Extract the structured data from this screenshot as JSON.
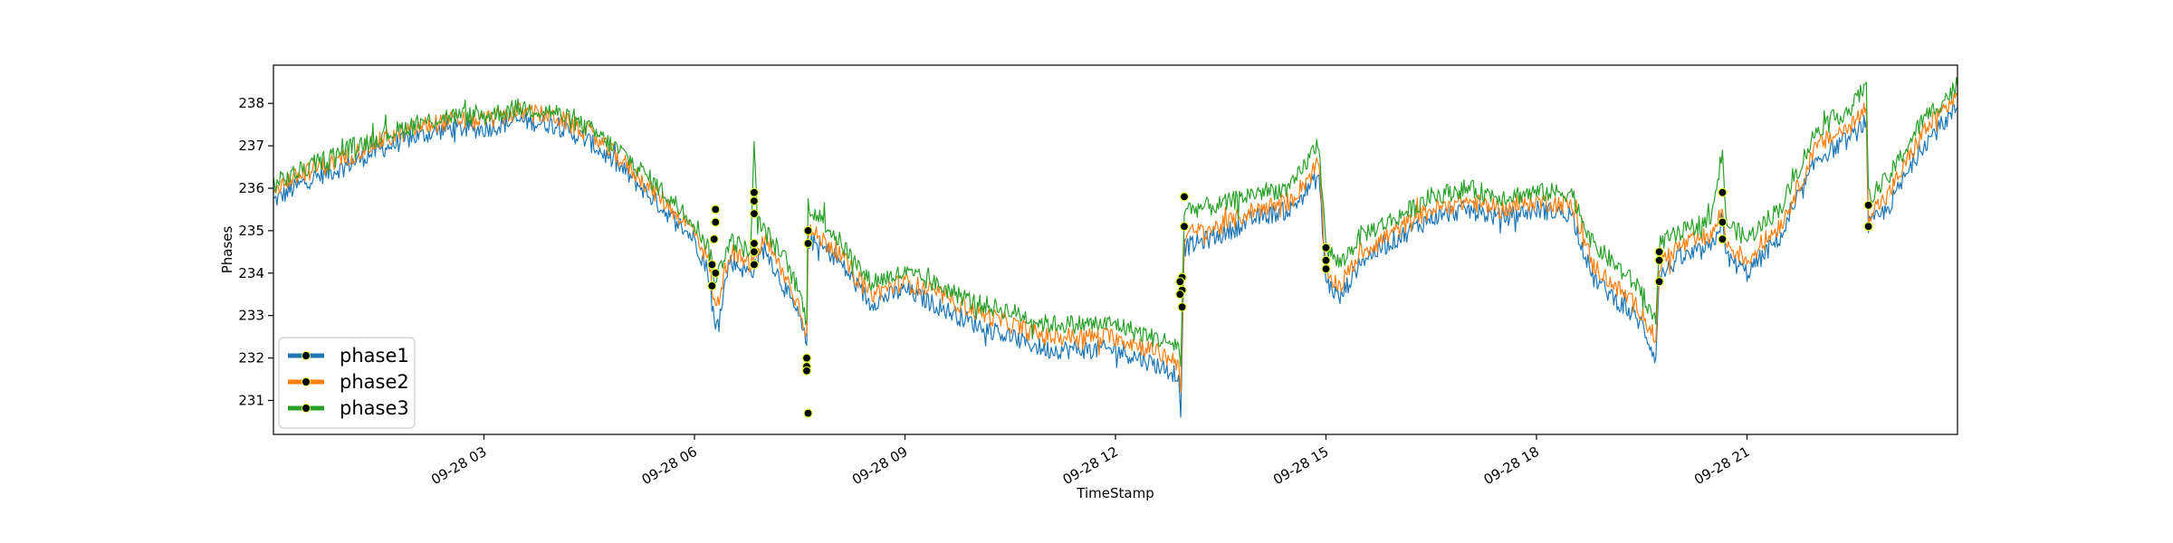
{
  "chart_data": {
    "type": "line",
    "title": "",
    "xlabel": "TimeStamp",
    "ylabel": "Phases",
    "x_range_hours": [
      0,
      24
    ],
    "ylim": [
      230.2,
      238.9
    ],
    "x_ticks": [
      {
        "hour": 3,
        "label": "09-28 03"
      },
      {
        "hour": 6,
        "label": "09-28 06"
      },
      {
        "hour": 9,
        "label": "09-28 09"
      },
      {
        "hour": 12,
        "label": "09-28 12"
      },
      {
        "hour": 15,
        "label": "09-28 15"
      },
      {
        "hour": 18,
        "label": "09-28 18"
      },
      {
        "hour": 21,
        "label": "09-28 21"
      }
    ],
    "y_ticks": [
      {
        "value": 231,
        "label": "231"
      },
      {
        "value": 232,
        "label": "232"
      },
      {
        "value": 233,
        "label": "233"
      },
      {
        "value": 234,
        "label": "234"
      },
      {
        "value": 235,
        "label": "235"
      },
      {
        "value": 236,
        "label": "236"
      },
      {
        "value": 237,
        "label": "237"
      },
      {
        "value": 238,
        "label": "238"
      }
    ],
    "grid": false,
    "legend_position": "lower-left",
    "series": [
      {
        "name": "phase1",
        "color": "#1f77b4",
        "points": [
          [
            0,
            235.7
          ],
          [
            0.5,
            236.2
          ],
          [
            1,
            236.5
          ],
          [
            1.5,
            236.9
          ],
          [
            2,
            237.2
          ],
          [
            2.5,
            237.4
          ],
          [
            3,
            237.4
          ],
          [
            3.5,
            237.6
          ],
          [
            4,
            237.5
          ],
          [
            4.5,
            237.1
          ],
          [
            5,
            236.4
          ],
          [
            5.5,
            235.6
          ],
          [
            6,
            234.8
          ],
          [
            6.2,
            234.0
          ],
          [
            6.3,
            232.6
          ],
          [
            6.5,
            234.3
          ],
          [
            6.8,
            234.0
          ],
          [
            7,
            234.6
          ],
          [
            7.3,
            233.6
          ],
          [
            7.5,
            232.9
          ],
          [
            7.6,
            232.3
          ],
          [
            7.62,
            234.8
          ],
          [
            8,
            234.4
          ],
          [
            8.5,
            233.3
          ],
          [
            9,
            233.6
          ],
          [
            9.5,
            233.2
          ],
          [
            10,
            232.8
          ],
          [
            10.5,
            232.5
          ],
          [
            11,
            232.2
          ],
          [
            11.5,
            232.2
          ],
          [
            12,
            232.2
          ],
          [
            12.5,
            231.9
          ],
          [
            12.9,
            231.6
          ],
          [
            12.93,
            230.6
          ],
          [
            12.98,
            234.6
          ],
          [
            13.5,
            234.9
          ],
          [
            14,
            235.3
          ],
          [
            14.5,
            235.5
          ],
          [
            14.9,
            236.3
          ],
          [
            15,
            233.8
          ],
          [
            15.2,
            233.4
          ],
          [
            15.5,
            234.3
          ],
          [
            16,
            234.8
          ],
          [
            16.5,
            235.3
          ],
          [
            17,
            235.5
          ],
          [
            17.5,
            235.3
          ],
          [
            18,
            235.5
          ],
          [
            18.5,
            235.4
          ],
          [
            18.8,
            233.9
          ],
          [
            19.5,
            232.8
          ],
          [
            19.7,
            232.0
          ],
          [
            19.75,
            233.9
          ],
          [
            20,
            234.3
          ],
          [
            20.5,
            234.6
          ],
          [
            20.65,
            235.3
          ],
          [
            20.7,
            234.4
          ],
          [
            21,
            234.0
          ],
          [
            21.5,
            234.9
          ],
          [
            22,
            236.7
          ],
          [
            22.5,
            237.2
          ],
          [
            22.7,
            237.6
          ],
          [
            22.73,
            235.1
          ],
          [
            23,
            235.5
          ],
          [
            23.5,
            237.0
          ],
          [
            24,
            237.9
          ]
        ]
      },
      {
        "name": "phase2",
        "color": "#ff7f0e",
        "points": [
          [
            0,
            236.0
          ],
          [
            0.5,
            236.4
          ],
          [
            1,
            236.7
          ],
          [
            1.5,
            237.1
          ],
          [
            2,
            237.4
          ],
          [
            2.5,
            237.6
          ],
          [
            3,
            237.6
          ],
          [
            3.5,
            237.8
          ],
          [
            4,
            237.7
          ],
          [
            4.5,
            237.3
          ],
          [
            5,
            236.6
          ],
          [
            5.5,
            235.8
          ],
          [
            6,
            235.0
          ],
          [
            6.2,
            234.3
          ],
          [
            6.3,
            233.1
          ],
          [
            6.5,
            234.5
          ],
          [
            6.8,
            234.2
          ],
          [
            7,
            234.8
          ],
          [
            7.3,
            233.9
          ],
          [
            7.5,
            233.2
          ],
          [
            7.6,
            232.6
          ],
          [
            7.62,
            235.0
          ],
          [
            8,
            234.6
          ],
          [
            8.5,
            233.5
          ],
          [
            9,
            233.8
          ],
          [
            9.5,
            233.5
          ],
          [
            10,
            233.1
          ],
          [
            10.5,
            232.8
          ],
          [
            11,
            232.5
          ],
          [
            11.5,
            232.5
          ],
          [
            12,
            232.5
          ],
          [
            12.5,
            232.2
          ],
          [
            12.9,
            231.9
          ],
          [
            12.93,
            231.2
          ],
          [
            12.98,
            234.9
          ],
          [
            13.5,
            235.1
          ],
          [
            14,
            235.5
          ],
          [
            14.5,
            235.7
          ],
          [
            14.9,
            236.6
          ],
          [
            15,
            234.0
          ],
          [
            15.2,
            233.7
          ],
          [
            15.5,
            234.5
          ],
          [
            16,
            235.0
          ],
          [
            16.5,
            235.5
          ],
          [
            17,
            235.7
          ],
          [
            17.5,
            235.5
          ],
          [
            18,
            235.7
          ],
          [
            18.5,
            235.6
          ],
          [
            18.8,
            234.2
          ],
          [
            19.5,
            233.1
          ],
          [
            19.7,
            232.4
          ],
          [
            19.75,
            234.2
          ],
          [
            20,
            234.6
          ],
          [
            20.5,
            234.9
          ],
          [
            20.65,
            235.5
          ],
          [
            20.7,
            234.7
          ],
          [
            21,
            234.3
          ],
          [
            21.5,
            235.2
          ],
          [
            22,
            237.0
          ],
          [
            22.5,
            237.5
          ],
          [
            22.7,
            237.9
          ],
          [
            22.73,
            235.4
          ],
          [
            23,
            235.8
          ],
          [
            23.5,
            237.3
          ],
          [
            24,
            238.2
          ]
        ]
      },
      {
        "name": "phase3",
        "color": "#2ca02c",
        "points": [
          [
            0,
            236.1
          ],
          [
            0.5,
            236.5
          ],
          [
            1,
            236.9
          ],
          [
            1.5,
            237.2
          ],
          [
            2,
            237.5
          ],
          [
            2.5,
            237.7
          ],
          [
            3,
            237.7
          ],
          [
            3.5,
            237.9
          ],
          [
            4,
            237.8
          ],
          [
            4.5,
            237.4
          ],
          [
            5,
            236.8
          ],
          [
            5.5,
            236.0
          ],
          [
            6,
            235.2
          ],
          [
            6.2,
            234.6
          ],
          [
            6.3,
            233.8
          ],
          [
            6.5,
            234.8
          ],
          [
            6.8,
            234.5
          ],
          [
            6.85,
            237.1
          ],
          [
            6.9,
            235.2
          ],
          [
            7,
            235.0
          ],
          [
            7.3,
            234.3
          ],
          [
            7.5,
            233.5
          ],
          [
            7.6,
            232.9
          ],
          [
            7.62,
            235.6
          ],
          [
            8,
            234.9
          ],
          [
            8.5,
            233.8
          ],
          [
            9,
            234.0
          ],
          [
            9.5,
            233.7
          ],
          [
            10,
            233.3
          ],
          [
            10.5,
            233.1
          ],
          [
            11,
            232.8
          ],
          [
            11.5,
            232.8
          ],
          [
            12,
            232.8
          ],
          [
            12.5,
            232.5
          ],
          [
            12.9,
            232.3
          ],
          [
            12.93,
            231.8
          ],
          [
            12.98,
            235.5
          ],
          [
            13.5,
            235.6
          ],
          [
            14,
            235.9
          ],
          [
            14.5,
            236.0
          ],
          [
            14.9,
            237.1
          ],
          [
            15,
            234.6
          ],
          [
            15.2,
            234.2
          ],
          [
            15.5,
            234.9
          ],
          [
            16,
            235.3
          ],
          [
            16.5,
            235.8
          ],
          [
            17,
            236.0
          ],
          [
            17.5,
            235.8
          ],
          [
            18,
            235.9
          ],
          [
            18.5,
            235.9
          ],
          [
            18.8,
            234.7
          ],
          [
            19.5,
            233.6
          ],
          [
            19.7,
            232.8
          ],
          [
            19.75,
            234.7
          ],
          [
            20,
            234.9
          ],
          [
            20.5,
            235.3
          ],
          [
            20.65,
            236.9
          ],
          [
            20.7,
            235.2
          ],
          [
            21,
            234.8
          ],
          [
            21.5,
            235.6
          ],
          [
            22,
            237.4
          ],
          [
            22.5,
            237.9
          ],
          [
            22.7,
            238.5
          ],
          [
            22.73,
            235.8
          ],
          [
            23,
            236.2
          ],
          [
            23.5,
            237.6
          ],
          [
            24,
            238.4
          ]
        ]
      }
    ],
    "markers": [
      {
        "x": 6.3,
        "y": 235.5
      },
      {
        "x": 6.3,
        "y": 235.2
      },
      {
        "x": 6.28,
        "y": 234.8
      },
      {
        "x": 6.25,
        "y": 234.2
      },
      {
        "x": 6.3,
        "y": 234.0
      },
      {
        "x": 6.25,
        "y": 233.7
      },
      {
        "x": 6.85,
        "y": 235.9
      },
      {
        "x": 6.85,
        "y": 235.7
      },
      {
        "x": 6.85,
        "y": 235.4
      },
      {
        "x": 6.85,
        "y": 234.7
      },
      {
        "x": 6.85,
        "y": 234.5
      },
      {
        "x": 6.85,
        "y": 234.2
      },
      {
        "x": 7.62,
        "y": 235.0
      },
      {
        "x": 7.62,
        "y": 234.7
      },
      {
        "x": 7.6,
        "y": 232.0
      },
      {
        "x": 7.6,
        "y": 231.8
      },
      {
        "x": 7.6,
        "y": 231.7
      },
      {
        "x": 7.62,
        "y": 230.7
      },
      {
        "x": 12.98,
        "y": 235.8
      },
      {
        "x": 12.98,
        "y": 235.1
      },
      {
        "x": 12.95,
        "y": 233.9
      },
      {
        "x": 12.92,
        "y": 233.8
      },
      {
        "x": 12.95,
        "y": 233.6
      },
      {
        "x": 12.92,
        "y": 233.5
      },
      {
        "x": 12.95,
        "y": 233.2
      },
      {
        "x": 15.0,
        "y": 234.6
      },
      {
        "x": 15.0,
        "y": 234.3
      },
      {
        "x": 15.0,
        "y": 234.1
      },
      {
        "x": 19.75,
        "y": 234.5
      },
      {
        "x": 19.75,
        "y": 234.3
      },
      {
        "x": 19.75,
        "y": 233.8
      },
      {
        "x": 20.65,
        "y": 235.9
      },
      {
        "x": 20.65,
        "y": 235.2
      },
      {
        "x": 20.65,
        "y": 234.8
      },
      {
        "x": 22.73,
        "y": 235.6
      },
      {
        "x": 22.73,
        "y": 235.1
      }
    ],
    "marker_style": {
      "fill": "#000000",
      "edge": "#e0ff30"
    }
  }
}
